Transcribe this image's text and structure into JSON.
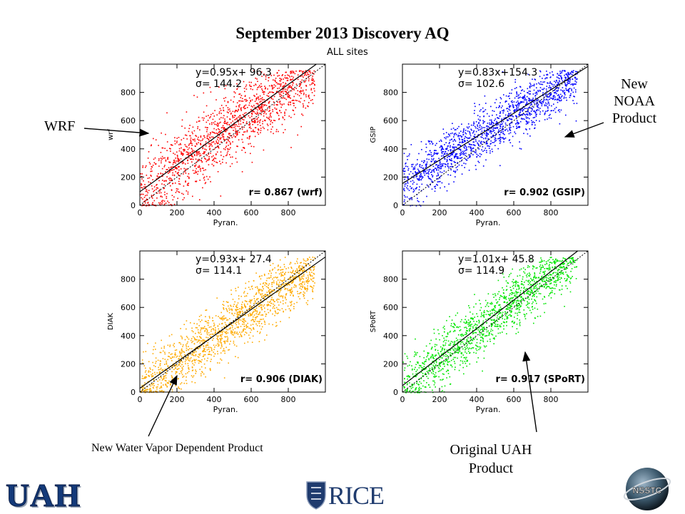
{
  "title": "September 2013 Discovery AQ",
  "subtitle": "ALL sites",
  "annotations": {
    "wrf": "WRF",
    "noaa": [
      "New",
      "NOAA",
      "Product"
    ],
    "water_vapor": "New Water Vapor Dependent Product",
    "uah": [
      "Original UAH",
      "Product"
    ]
  },
  "logos": {
    "uah": "UAH",
    "rice": "RICE",
    "nsstc": "NSSTC"
  },
  "chart_data": [
    {
      "type": "scatter",
      "name_tag": "wrf",
      "color": "#ff0000",
      "xlabel": "Pyran.",
      "ylabel": "wrf",
      "xlim": [
        0,
        1000
      ],
      "ylim": [
        0,
        1000
      ],
      "xticks": [
        0,
        200,
        400,
        600,
        800
      ],
      "yticks": [
        0,
        200,
        400,
        600,
        800
      ],
      "fit": {
        "slope": 0.95,
        "intercept": 96.3
      },
      "equation": "y=0.95x+ 96.3",
      "sigma": "σ= 144.2",
      "r_label": "r= 0.867 (wrf)",
      "r": 0.867,
      "sigma_value": 144.2
    },
    {
      "type": "scatter",
      "name_tag": "gsip",
      "color": "#0000ff",
      "xlabel": "Pyran.",
      "ylabel": "GSIP",
      "xlim": [
        0,
        1000
      ],
      "ylim": [
        0,
        1000
      ],
      "xticks": [
        0,
        200,
        400,
        600,
        800
      ],
      "yticks": [
        0,
        200,
        400,
        600,
        800
      ],
      "fit": {
        "slope": 0.83,
        "intercept": 154.3
      },
      "equation": "y=0.83x+154.3",
      "sigma": "σ= 102.6",
      "r_label": "r= 0.902 (GSIP)",
      "r": 0.902,
      "sigma_value": 102.6
    },
    {
      "type": "scatter",
      "name_tag": "diak",
      "color": "#ffaa00",
      "xlabel": "Pyran.",
      "ylabel": "DIAK",
      "xlim": [
        0,
        1000
      ],
      "ylim": [
        0,
        1000
      ],
      "xticks": [
        0,
        200,
        400,
        600,
        800
      ],
      "yticks": [
        0,
        200,
        400,
        600,
        800
      ],
      "fit": {
        "slope": 0.93,
        "intercept": 27.4
      },
      "equation": "y=0.93x+ 27.4",
      "sigma": "σ= 114.1",
      "r_label": "r= 0.906 (DIAK)",
      "r": 0.906,
      "sigma_value": 114.1
    },
    {
      "type": "scatter",
      "name_tag": "sport",
      "color": "#00e600",
      "xlabel": "Pyran.",
      "ylabel": "SPoRT",
      "xlim": [
        0,
        1000
      ],
      "ylim": [
        0,
        1000
      ],
      "xticks": [
        0,
        200,
        400,
        600,
        800
      ],
      "yticks": [
        0,
        200,
        400,
        600,
        800
      ],
      "fit": {
        "slope": 1.01,
        "intercept": 45.8
      },
      "equation": "y=1.01x+ 45.8",
      "sigma": "σ= 114.9",
      "r_label": "r= 0.917 (SPoRT)",
      "r": 0.917,
      "sigma_value": 114.9
    }
  ]
}
